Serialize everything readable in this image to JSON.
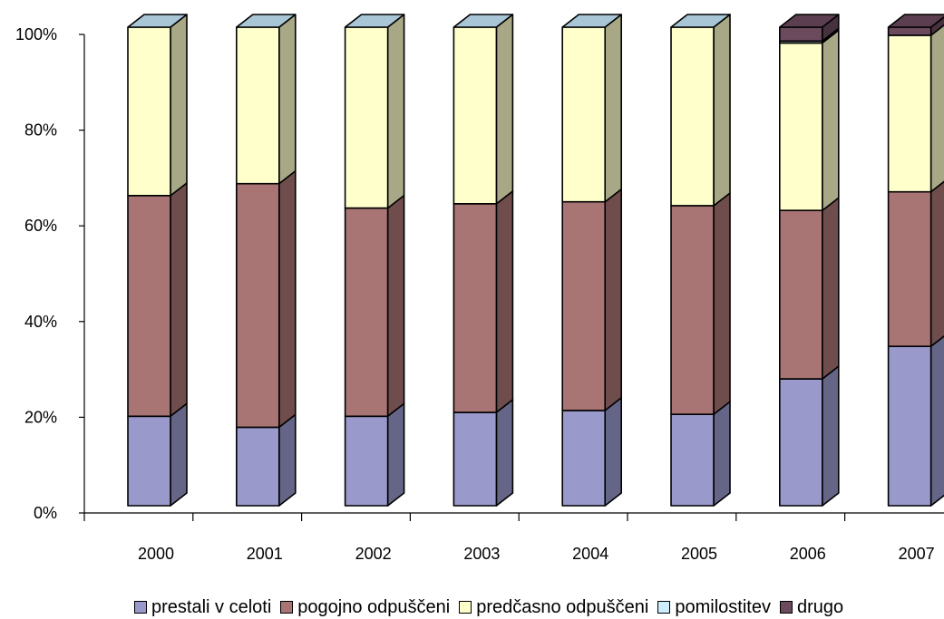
{
  "chart_data": {
    "type": "bar",
    "stacked": true,
    "percent": true,
    "three_d": true,
    "title": "",
    "xlabel": "",
    "ylabel": "",
    "ylim": [
      0,
      100
    ],
    "yticks": [
      "0%",
      "20%",
      "40%",
      "60%",
      "80%",
      "100%"
    ],
    "categories": [
      "2000",
      "2001",
      "2002",
      "2003",
      "2004",
      "2005",
      "2006",
      "2007"
    ],
    "series": [
      {
        "name": "prestali v celoti",
        "color": "#9999cc",
        "values": [
          18.7,
          16.4,
          18.7,
          19.5,
          19.9,
          19.1,
          26.5,
          33.3
        ]
      },
      {
        "name": "pogojno odpuščeni",
        "color": "#a87474",
        "values": [
          46.1,
          50.9,
          43.5,
          43.6,
          43.6,
          43.6,
          35.2,
          32.3
        ]
      },
      {
        "name": "predčasno odpuščeni",
        "color": "#ffffcc",
        "values": [
          35.2,
          32.7,
          37.8,
          36.9,
          36.5,
          37.3,
          35.0,
          32.7
        ]
      },
      {
        "name": "pomilostitev",
        "color": "#cceeff",
        "values": [
          0,
          0,
          0,
          0,
          0,
          0,
          0.4,
          0
        ]
      },
      {
        "name": "drugo",
        "color": "#6b4a5e",
        "values": [
          0,
          0,
          0,
          0,
          0,
          0,
          2.9,
          1.7
        ]
      }
    ],
    "legend_position": "bottom",
    "grid": false
  }
}
